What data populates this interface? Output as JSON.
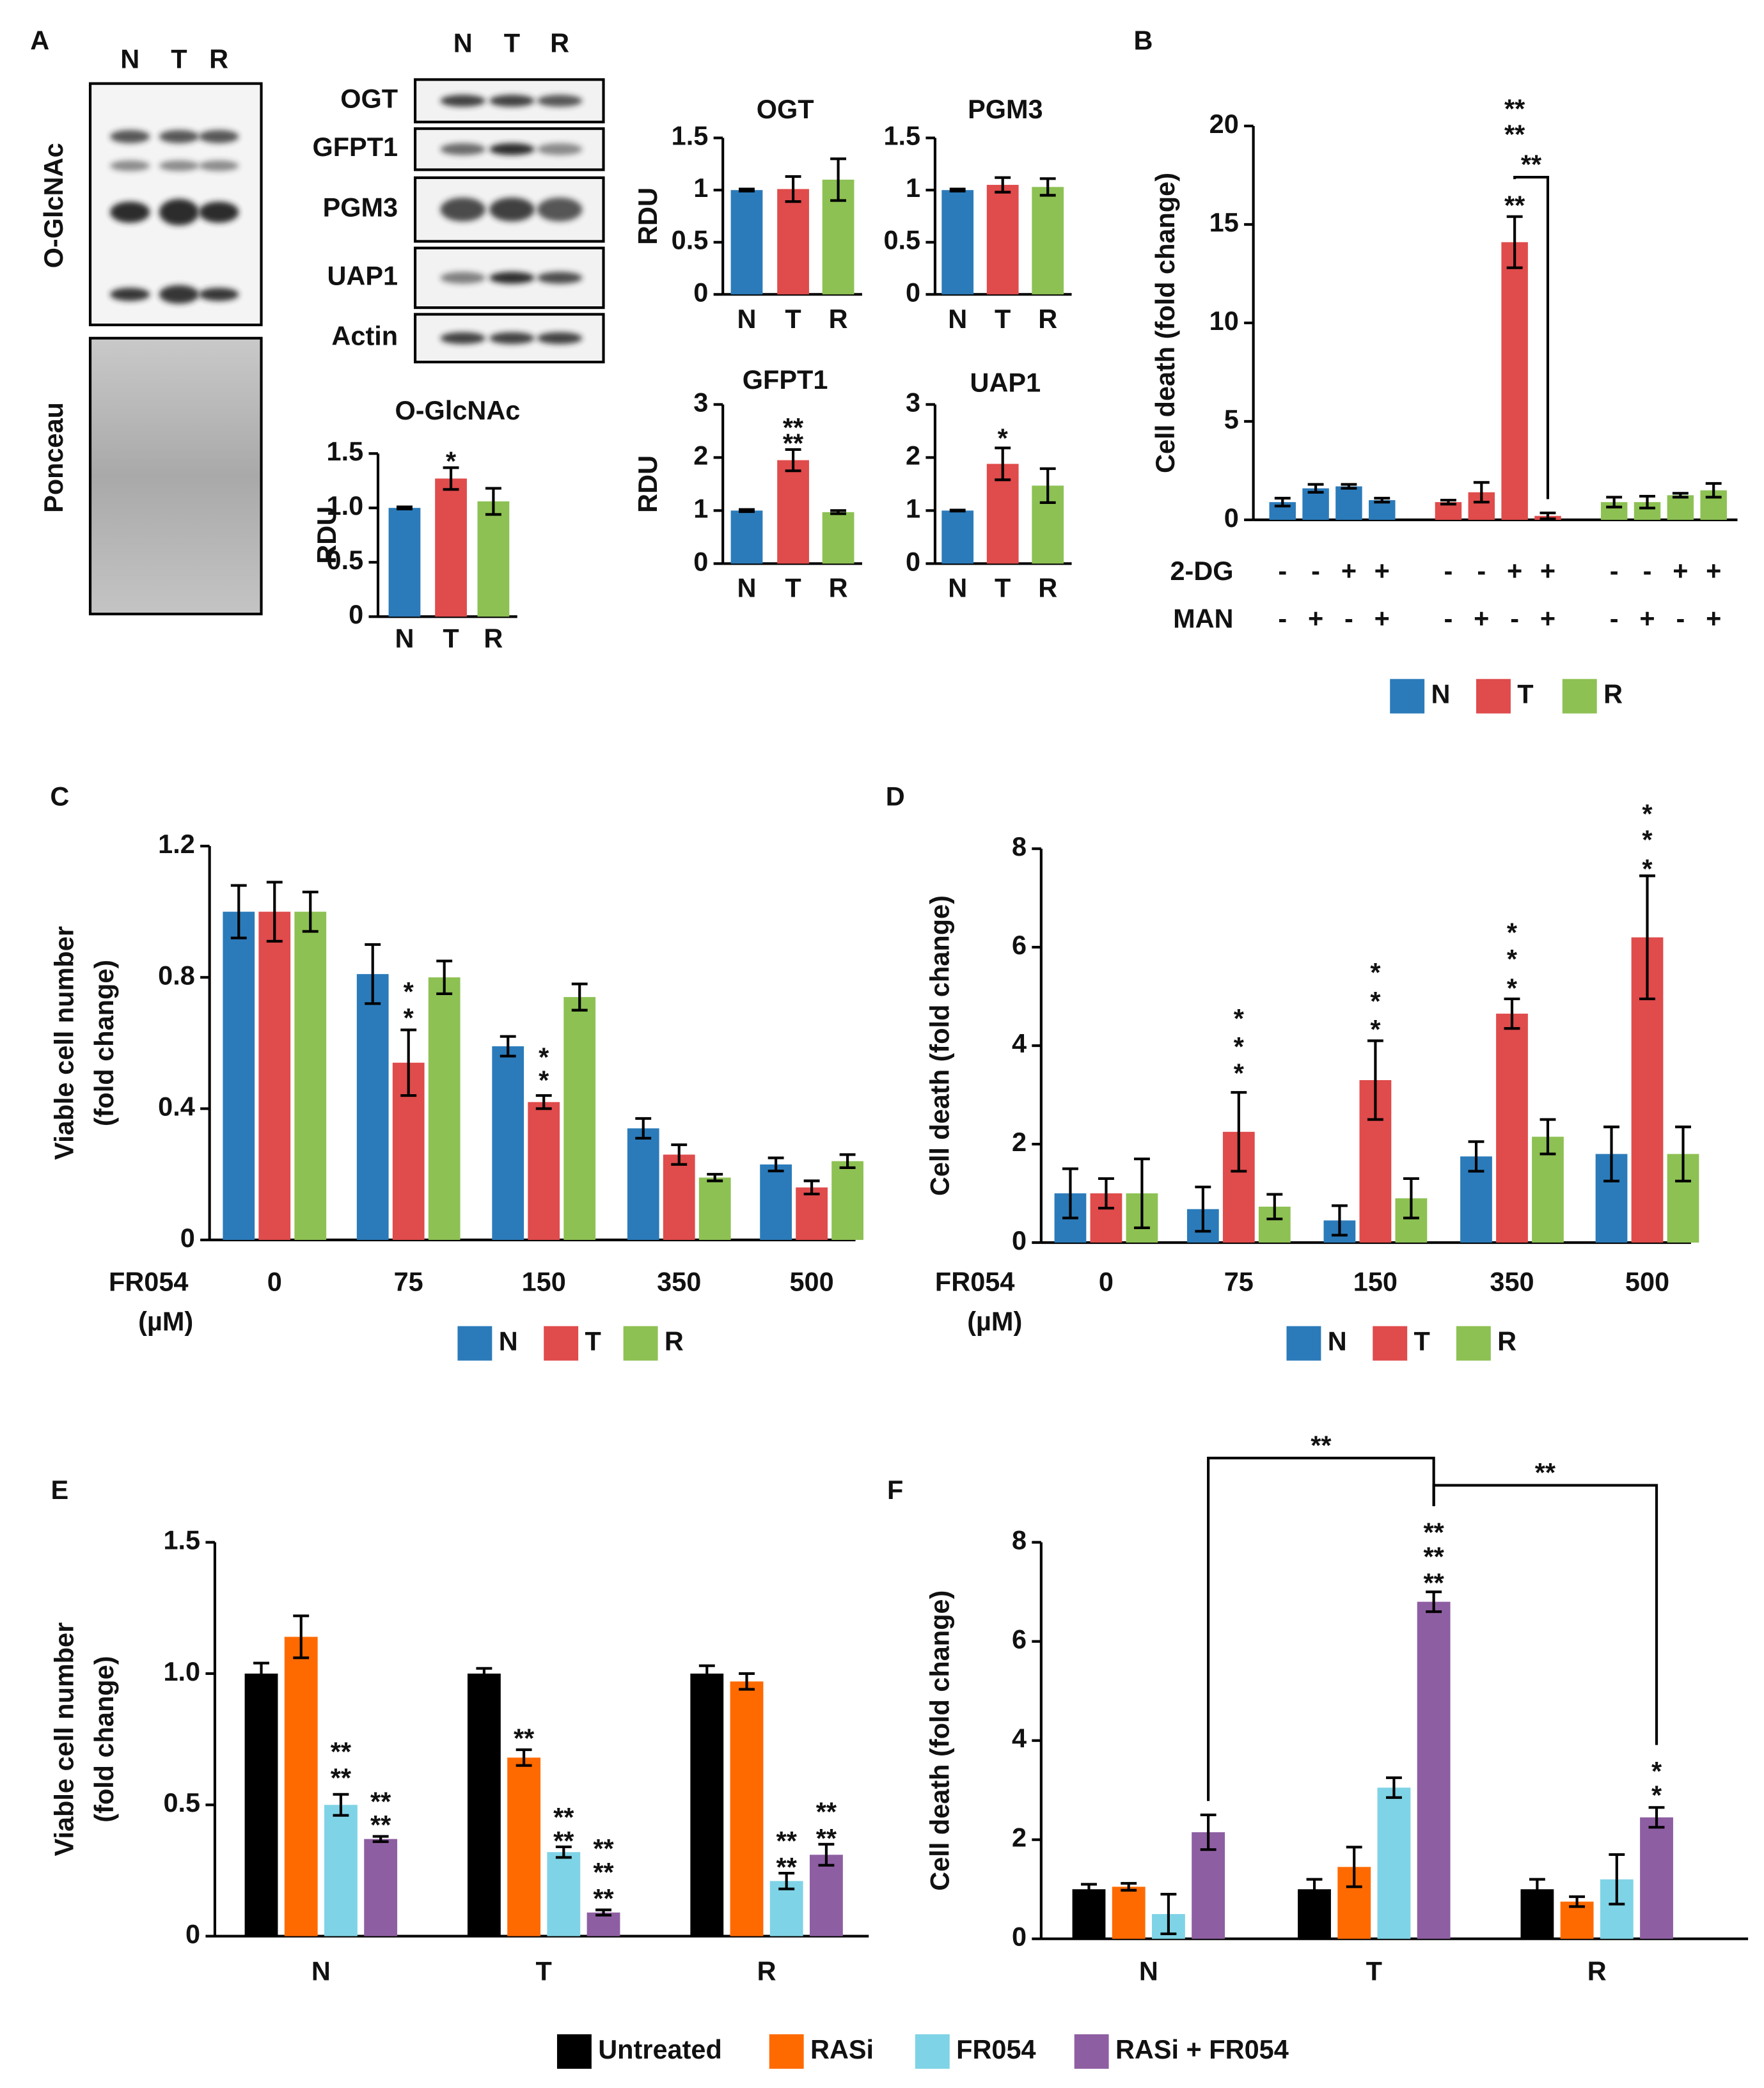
{
  "chart_data": [
    {
      "type": "blot",
      "panel": "A",
      "lanes": [
        "N",
        "T",
        "R"
      ],
      "left_blots": [
        "O-GlcNAc",
        "Ponceau"
      ],
      "right_blots": [
        "OGT",
        "GFPT1",
        "PGM3",
        "UAP1",
        "Actin"
      ]
    },
    {
      "type": "bar",
      "title": "O-GlcNAc",
      "ylabel": "RDU",
      "categories": [
        "N",
        "T",
        "R"
      ],
      "values": [
        1.0,
        1.27,
        1.06
      ],
      "errors": [
        0.01,
        0.1,
        0.12
      ],
      "colors": [
        "#2b7bba",
        "#e04b4b",
        "#8dc153"
      ],
      "ylim": [
        0,
        1.5
      ],
      "yticks": [
        0,
        0.5,
        {
          "value": 1,
          "label": "1.0"
        },
        1.5
      ],
      "annotations": [
        {
          "text": "*",
          "color": "#3b8fd6",
          "index": 1,
          "y": 1.47
        }
      ]
    },
    {
      "type": "bar",
      "title": "OGT",
      "ylabel": "RDU",
      "categories": [
        "N",
        "T",
        "R"
      ],
      "values": [
        1.0,
        1.01,
        1.1
      ],
      "errors": [
        0.01,
        0.12,
        0.2
      ],
      "colors": [
        "#2b7bba",
        "#e04b4b",
        "#8dc153"
      ],
      "ylim": [
        0,
        1.5
      ],
      "yticks": [
        0,
        0.5,
        1,
        1.5
      ]
    },
    {
      "type": "bar",
      "title": "PGM3",
      "categories": [
        "N",
        "T",
        "R"
      ],
      "values": [
        1.0,
        1.05,
        1.03
      ],
      "errors": [
        0.01,
        0.07,
        0.08
      ],
      "colors": [
        "#2b7bba",
        "#e04b4b",
        "#8dc153"
      ],
      "ylim": [
        0,
        1.5
      ],
      "yticks": [
        0,
        0.5,
        1,
        1.5
      ]
    },
    {
      "type": "bar",
      "title": "GFPT1",
      "ylabel": "RDU",
      "categories": [
        "N",
        "T",
        "R"
      ],
      "values": [
        1.0,
        1.95,
        0.97
      ],
      "errors": [
        0.02,
        0.2,
        0.03
      ],
      "colors": [
        "#2b7bba",
        "#e04b4b",
        "#8dc153"
      ],
      "ylim": [
        0,
        3
      ],
      "yticks": [
        0,
        1,
        2,
        3
      ],
      "annotations": [
        {
          "text": "**",
          "color": "#3b8fd6",
          "index": 1,
          "y": 2.35
        },
        {
          "text": "**",
          "color": "#8dc153",
          "index": 1,
          "y": 2.65
        }
      ]
    },
    {
      "type": "bar",
      "title": "UAP1",
      "categories": [
        "N",
        "T",
        "R"
      ],
      "values": [
        1.0,
        1.88,
        1.47
      ],
      "errors": [
        0.01,
        0.3,
        0.32
      ],
      "colors": [
        "#2b7bba",
        "#e04b4b",
        "#8dc153"
      ],
      "ylim": [
        0,
        3
      ],
      "yticks": [
        0,
        1,
        2,
        3
      ],
      "annotations": [
        {
          "text": "*",
          "color": "#3b8fd6",
          "index": 1,
          "y": 2.45
        }
      ]
    },
    {
      "type": "bar",
      "panel": "B",
      "ylabel": "Cell death (fold change)",
      "condition_rows": [
        {
          "label": "2-DG",
          "signs": [
            "-",
            "-",
            "+",
            "+"
          ]
        },
        {
          "label": "MAN",
          "signs": [
            "-",
            "+",
            "-",
            "+"
          ]
        }
      ],
      "series": [
        {
          "name": "N",
          "color": "#2b7bba",
          "values": [
            0.9,
            1.6,
            1.7,
            1.0
          ],
          "errors": [
            0.2,
            0.2,
            0.1,
            0.1
          ]
        },
        {
          "name": "T",
          "color": "#e04b4b",
          "values": [
            0.9,
            1.4,
            14.1,
            0.2
          ],
          "errors": [
            0.1,
            0.5,
            1.3,
            0.15
          ]
        },
        {
          "name": "R",
          "color": "#8dc153",
          "values": [
            0.9,
            0.9,
            1.25,
            1.5
          ],
          "errors": [
            0.25,
            0.3,
            0.1,
            0.35
          ]
        }
      ],
      "ylim": [
        0,
        20
      ],
      "yticks": [
        0,
        5,
        10,
        15,
        20
      ],
      "annotations": [
        {
          "text": "**",
          "color": "#111111",
          "series": 1,
          "index": 2,
          "y": 16.2
        },
        {
          "text": "**",
          "color": "#3b8fd6",
          "series": 1,
          "index": 2,
          "y": 19.8
        },
        {
          "text": "**",
          "color": "#8dc153",
          "series": 1,
          "index": 2,
          "y": 21.1
        }
      ],
      "brackets": [
        {
          "label": "**",
          "y": 17.4,
          "from": {
            "series": 1,
            "index": 2
          },
          "to": {
            "series": 1,
            "index": 3
          }
        }
      ]
    },
    {
      "type": "bar",
      "panel": "C",
      "ylabel": [
        "Viable cell number",
        "(fold change)"
      ],
      "xlabel": [
        "FR054",
        "(µM)"
      ],
      "categories": [
        "0",
        "75",
        "150",
        "350",
        "500"
      ],
      "series": [
        {
          "name": "N",
          "color": "#2b7bba",
          "values": [
            1.0,
            0.81,
            0.59,
            0.34,
            0.23
          ],
          "errors": [
            0.08,
            0.09,
            0.03,
            0.03,
            0.02
          ]
        },
        {
          "name": "T",
          "color": "#e04b4b",
          "values": [
            1.0,
            0.54,
            0.42,
            0.26,
            0.16
          ],
          "errors": [
            0.09,
            0.1,
            0.02,
            0.03,
            0.02
          ]
        },
        {
          "name": "R",
          "color": "#8dc153",
          "values": [
            1.0,
            0.8,
            0.74,
            0.19,
            0.24
          ],
          "errors": [
            0.06,
            0.05,
            0.04,
            0.01,
            0.02
          ]
        }
      ],
      "ylim": [
        0,
        1.2
      ],
      "yticks": [
        0,
        0.4,
        0.8,
        1.2
      ],
      "annotations": [
        {
          "text": "*",
          "color": "#3b8fd6",
          "series": 1,
          "index": 1,
          "y": 0.69
        },
        {
          "text": "*",
          "color": "#8dc153",
          "series": 1,
          "index": 1,
          "y": 0.77
        },
        {
          "text": "*",
          "color": "#3b8fd6",
          "series": 1,
          "index": 2,
          "y": 0.5
        },
        {
          "text": "*",
          "color": "#8dc153",
          "series": 1,
          "index": 2,
          "y": 0.57
        }
      ]
    },
    {
      "type": "bar",
      "panel": "D",
      "ylabel": "Cell death (fold change)",
      "xlabel": [
        "FR054",
        "(µM)"
      ],
      "categories": [
        "0",
        "75",
        "150",
        "350",
        "500"
      ],
      "series": [
        {
          "name": "N",
          "color": "#2b7bba",
          "values": [
            1.0,
            0.68,
            0.45,
            1.75,
            1.8
          ],
          "errors": [
            0.5,
            0.45,
            0.3,
            0.3,
            0.55
          ]
        },
        {
          "name": "T",
          "color": "#e04b4b",
          "values": [
            1.0,
            2.25,
            3.3,
            4.65,
            6.2
          ],
          "errors": [
            0.3,
            0.8,
            0.8,
            0.3,
            1.25
          ]
        },
        {
          "name": "R",
          "color": "#8dc153",
          "values": [
            1.0,
            0.73,
            0.9,
            2.15,
            1.8
          ],
          "errors": [
            0.7,
            0.25,
            0.4,
            0.35,
            0.55
          ]
        }
      ],
      "ylim": [
        0,
        8
      ],
      "yticks": [
        0,
        2,
        4,
        6,
        8
      ],
      "annotations": [
        {
          "text": "*",
          "color": "#111111",
          "series": 1,
          "index": 1,
          "y": 3.53
        },
        {
          "text": "*",
          "color": "#3b8fd6",
          "series": 1,
          "index": 1,
          "y": 4.07
        },
        {
          "text": "*",
          "color": "#8dc153",
          "series": 1,
          "index": 1,
          "y": 4.64
        },
        {
          "text": "*",
          "color": "#111111",
          "series": 1,
          "index": 2,
          "y": 4.42
        },
        {
          "text": "*",
          "color": "#3b8fd6",
          "series": 1,
          "index": 2,
          "y": 4.99
        },
        {
          "text": "*",
          "color": "#8dc153",
          "series": 1,
          "index": 2,
          "y": 5.58
        },
        {
          "text": "*",
          "color": "#111111",
          "series": 1,
          "index": 3,
          "y": 5.26
        },
        {
          "text": "*",
          "color": "#3b8fd6",
          "series": 1,
          "index": 3,
          "y": 5.85
        },
        {
          "text": "*",
          "color": "#8dc153",
          "series": 1,
          "index": 3,
          "y": 6.39
        },
        {
          "text": "*",
          "color": "#111111",
          "series": 1,
          "index": 4,
          "y": 7.68
        },
        {
          "text": "*",
          "color": "#3b8fd6",
          "series": 1,
          "index": 4,
          "y": 8.27
        },
        {
          "text": "*",
          "color": "#8dc153",
          "series": 1,
          "index": 4,
          "y": 8.8
        }
      ]
    },
    {
      "type": "bar",
      "panel": "E",
      "ylabel": [
        "Viable cell number",
        "(fold change)"
      ],
      "categories": [
        "N",
        "T",
        "R"
      ],
      "series": [
        {
          "name": "Untreated",
          "color": "#000000",
          "values": [
            1.0,
            1.0,
            1.0
          ],
          "errors": [
            0.04,
            0.02,
            0.03
          ]
        },
        {
          "name": "RASi",
          "color": "#ff6a00",
          "values": [
            1.14,
            0.68,
            0.97
          ],
          "errors": [
            0.08,
            0.03,
            0.03
          ]
        },
        {
          "name": "FR054",
          "color": "#7fd3e6",
          "values": [
            0.5,
            0.32,
            0.21
          ],
          "errors": [
            0.04,
            0.02,
            0.03
          ]
        },
        {
          "name": "RASi + FR054",
          "color": "#8e5ea2",
          "values": [
            0.37,
            0.09,
            0.31
          ],
          "errors": [
            0.01,
            0.01,
            0.04
          ]
        }
      ],
      "ylim": [
        0,
        1.5
      ],
      "yticks": [
        0,
        0.5,
        {
          "value": 1,
          "label": "1.0"
        },
        1.5
      ],
      "annotations": [
        {
          "text": "**",
          "color": "#111111",
          "series": 2,
          "index": 0,
          "y": 0.72
        },
        {
          "text": "**",
          "color": "#ff6a00",
          "series": 2,
          "index": 0,
          "y": 0.62
        },
        {
          "text": "**",
          "color": "#111111",
          "series": 3,
          "index": 0,
          "y": 0.53
        },
        {
          "text": "**",
          "color": "#ff6a00",
          "series": 3,
          "index": 0,
          "y": 0.44
        },
        {
          "text": "**",
          "color": "#111111",
          "series": 1,
          "index": 1,
          "y": 0.77
        },
        {
          "text": "**",
          "color": "#111111",
          "series": 2,
          "index": 1,
          "y": 0.47
        },
        {
          "text": "**",
          "color": "#ff6a00",
          "series": 2,
          "index": 1,
          "y": 0.38
        },
        {
          "text": "**",
          "color": "#111111",
          "series": 3,
          "index": 1,
          "y": 0.35
        },
        {
          "text": "**",
          "color": "#ff6a00",
          "series": 3,
          "index": 1,
          "y": 0.26
        },
        {
          "text": "**",
          "color": "#7fd3e6",
          "series": 3,
          "index": 1,
          "y": 0.16
        },
        {
          "text": "**",
          "color": "#111111",
          "series": 2,
          "index": 2,
          "y": 0.38
        },
        {
          "text": "**",
          "color": "#ff6a00",
          "series": 2,
          "index": 2,
          "y": 0.28
        },
        {
          "text": "**",
          "color": "#111111",
          "series": 3,
          "index": 2,
          "y": 0.49
        },
        {
          "text": "**",
          "color": "#ff6a00",
          "series": 3,
          "index": 2,
          "y": 0.39
        }
      ]
    },
    {
      "type": "bar",
      "panel": "F",
      "ylabel": "Cell death (fold change)",
      "categories": [
        "N",
        "T",
        "R"
      ],
      "series": [
        {
          "color": "#000000",
          "values": [
            1.0,
            1.0,
            1.0
          ],
          "errors": [
            0.1,
            0.2,
            0.2
          ]
        },
        {
          "color": "#ff6a00",
          "values": [
            1.05,
            1.45,
            0.75
          ],
          "errors": [
            0.07,
            0.4,
            0.1
          ]
        },
        {
          "color": "#7fd3e6",
          "values": [
            0.5,
            3.05,
            1.2
          ],
          "errors": [
            0.4,
            0.2,
            0.5
          ]
        },
        {
          "color": "#8e5ea2",
          "values": [
            2.15,
            6.8,
            2.45
          ],
          "errors": [
            0.35,
            0.2,
            0.2
          ]
        }
      ],
      "ylim": [
        0,
        8
      ],
      "yticks": [
        0,
        2,
        4,
        6,
        8
      ],
      "annotations": [
        {
          "text": "**",
          "color": "#111111",
          "series": 3,
          "index": 1,
          "y": 8.29
        },
        {
          "text": "**",
          "color": "#ff6a00",
          "series": 3,
          "index": 1,
          "y": 7.8
        },
        {
          "text": "**",
          "color": "#7fd3e6",
          "series": 3,
          "index": 1,
          "y": 7.27
        },
        {
          "text": "*",
          "color": "#111111",
          "series": 3,
          "index": 2,
          "y": 3.47
        },
        {
          "text": "*",
          "color": "#ff6a00",
          "series": 3,
          "index": 2,
          "y": 2.99
        }
      ],
      "brackets": [
        {
          "label": "**",
          "y": 9.7,
          "from": {
            "series": 3,
            "index": 0
          },
          "to": {
            "series": 3,
            "index": 1
          }
        },
        {
          "label": "**",
          "y": 9.15,
          "from": {
            "series": 3,
            "index": 1
          },
          "to": {
            "series": 3,
            "index": 2
          }
        }
      ]
    }
  ]
}
